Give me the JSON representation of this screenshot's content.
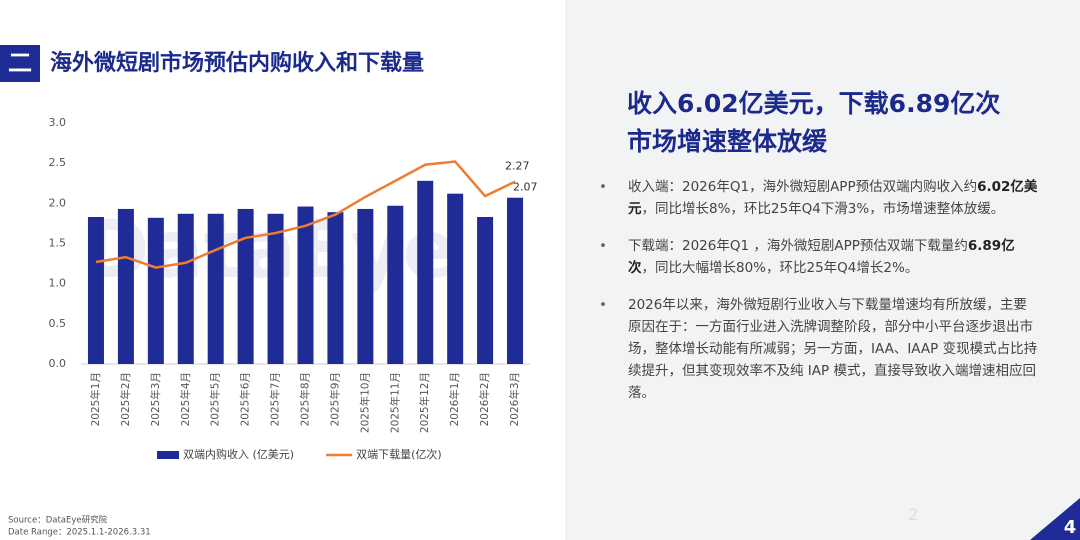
{
  "header": {
    "badge": "二",
    "title": "海外微短剧市场预估内购收入和下载量"
  },
  "chart_data": {
    "type": "combo",
    "watermark": "DataEye",
    "categories": [
      "2025年1月",
      "2025年2月",
      "2025年3月",
      "2025年4月",
      "2025年5月",
      "2025年6月",
      "2025年7月",
      "2025年8月",
      "2025年9月",
      "2025年10月",
      "2025年11月",
      "2025年12月",
      "2026年1月",
      "2026年2月",
      "2026年3月"
    ],
    "series": [
      {
        "name": "双端内购收入 (亿美元)",
        "type": "bar",
        "color": "#1f2b96",
        "values": [
          1.83,
          1.93,
          1.82,
          1.87,
          1.87,
          1.93,
          1.87,
          1.96,
          1.89,
          1.93,
          1.97,
          2.28,
          2.12,
          1.83,
          2.07
        ]
      },
      {
        "name": "双端下载量(亿次)",
        "type": "line",
        "color": "#ed7d31",
        "values": [
          1.27,
          1.33,
          1.2,
          1.26,
          1.42,
          1.57,
          1.63,
          1.72,
          1.86,
          2.08,
          2.28,
          2.48,
          2.52,
          2.09,
          2.27
        ]
      }
    ],
    "ylim": [
      0,
      3
    ],
    "yticks": [
      {
        "value": 0,
        "label": "0.0"
      },
      0.5,
      {
        "value": 1,
        "label": "1.0"
      },
      1.5,
      {
        "value": 2,
        "label": "2.0"
      },
      2.5,
      {
        "value": 3,
        "label": "3.0"
      }
    ],
    "grid": false,
    "legend": "bottom"
  },
  "source": [
    "Source：DataEye研究院",
    "Date Range：2025.1.1-2026.3.31"
  ],
  "panel": {
    "headline": [
      "收入6.02亿美元，下载6.89亿次",
      "市场增速整体放缓"
    ],
    "bullets": [
      [
        {
          "text": "收入端：2026年Q1，海外微短剧APP预估双端内购收入约"
        },
        {
          "bold": "6.02亿美元"
        },
        {
          "text": "，同比增长8%，环比25年Q4下滑3%，市场增速整体放缓。"
        }
      ],
      [
        {
          "text": "下载端：2026年Q1 ，海外微短剧APP预估双端下载量约"
        },
        {
          "bold": "6.89亿次"
        },
        {
          "text": "，同比大幅增长80%，环比25年Q4增长2%。"
        }
      ],
      [
        {
          "text": "2026年以来，海外微短剧行业收入与下载量增速均有所放缓，主要原因在于：一方面行业进入洗牌调整阶段，部分中小平台逐步退出市场，整体增长动能有所减弱；另一方面，IAA、IAAP 变现模式占比持续提升，但其变现效率不及纯 IAP 模式，直接导致收入端增速相应回落。"
        }
      ]
    ]
  },
  "page_number": "4",
  "faint_number": "2"
}
